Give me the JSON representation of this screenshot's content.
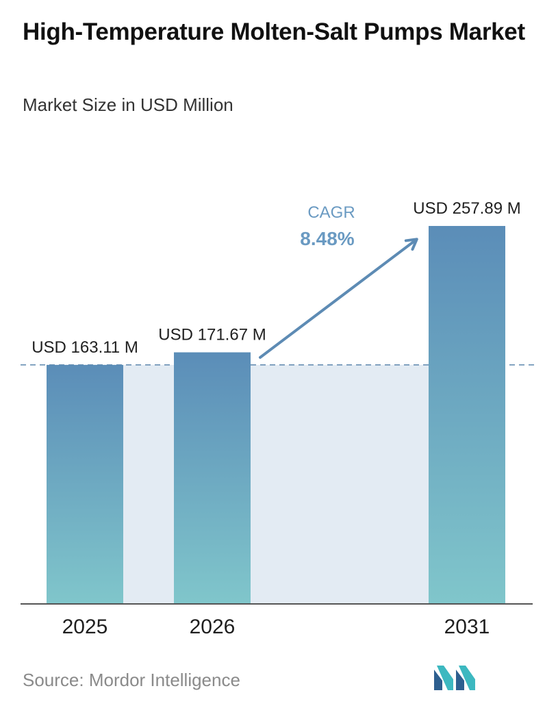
{
  "header": {
    "title": "High-Temperature Molten-Salt Pumps Market",
    "subtitle": "Market Size in USD Million"
  },
  "chart_data": {
    "type": "bar",
    "categories": [
      "2025",
      "2026",
      "2031"
    ],
    "values": [
      163.11,
      171.67,
      257.89
    ],
    "value_labels": [
      "USD 163.11 M",
      "USD 171.67 M",
      "USD 257.89 M"
    ],
    "ylim": [
      0,
      257.89
    ],
    "grid": false,
    "cagr": {
      "label": "CAGR",
      "value": "8.48%"
    },
    "colors": {
      "bar_top": "#5b8db8",
      "bar_bottom": "#80c6cb",
      "band": "#e3ebf3",
      "arrow": "#5d8bb4",
      "cagr_text": "#6a9ac2"
    }
  },
  "footer": {
    "source": "Source: Mordor Intelligence",
    "logo_icon": "mordor-intelligence-logo-icon"
  }
}
